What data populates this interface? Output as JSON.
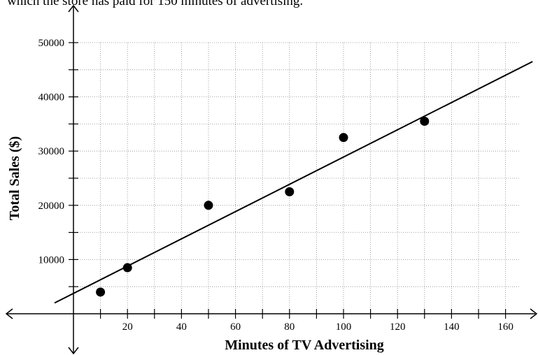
{
  "caption": "which the store has paid for 150 minutes of advertising.",
  "chart_data": {
    "type": "scatter",
    "xlabel": "Minutes of TV Advertising",
    "ylabel": "Total Sales ($)",
    "xlim": [
      -25,
      170
    ],
    "ylim": [
      -5000,
      50000
    ],
    "x_ticks": [
      20,
      40,
      60,
      80,
      100,
      120,
      140,
      160
    ],
    "y_ticks": [
      10000,
      20000,
      30000,
      40000,
      50000
    ],
    "grid": true,
    "points": [
      {
        "x": 10,
        "y": 4000
      },
      {
        "x": 20,
        "y": 8500
      },
      {
        "x": 50,
        "y": 20000
      },
      {
        "x": 80,
        "y": 22500
      },
      {
        "x": 100,
        "y": 32500
      },
      {
        "x": 130,
        "y": 35500
      }
    ],
    "trend_line": {
      "x": [
        -7,
        170
      ],
      "y": [
        2000,
        46500
      ]
    }
  }
}
